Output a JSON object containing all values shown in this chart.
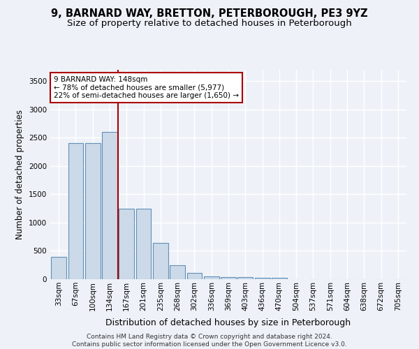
{
  "title": "9, BARNARD WAY, BRETTON, PETERBOROUGH, PE3 9YZ",
  "subtitle": "Size of property relative to detached houses in Peterborough",
  "xlabel": "Distribution of detached houses by size in Peterborough",
  "ylabel": "Number of detached properties",
  "footer_line1": "Contains HM Land Registry data © Crown copyright and database right 2024.",
  "footer_line2": "Contains public sector information licensed under the Open Government Licence v3.0.",
  "categories": [
    "33sqm",
    "67sqm",
    "100sqm",
    "134sqm",
    "167sqm",
    "201sqm",
    "235sqm",
    "268sqm",
    "302sqm",
    "336sqm",
    "369sqm",
    "403sqm",
    "436sqm",
    "470sqm",
    "504sqm",
    "537sqm",
    "571sqm",
    "604sqm",
    "638sqm",
    "672sqm",
    "705sqm"
  ],
  "values": [
    390,
    2400,
    2400,
    2600,
    1250,
    1250,
    640,
    250,
    110,
    55,
    40,
    40,
    30,
    25,
    0,
    0,
    0,
    0,
    0,
    0,
    0
  ],
  "bar_color": "#ccd9e8",
  "bar_edge_color": "#6090b8",
  "vline_x": 3.5,
  "vline_color": "#aa0000",
  "annotation_text": "9 BARNARD WAY: 148sqm\n← 78% of detached houses are smaller (5,977)\n22% of semi-detached houses are larger (1,650) →",
  "annotation_box_color": "#ffffff",
  "annotation_box_edge_color": "#aa0000",
  "ylim": [
    0,
    3700
  ],
  "yticks": [
    0,
    500,
    1000,
    1500,
    2000,
    2500,
    3000,
    3500
  ],
  "background_color": "#eef2f8",
  "grid_color": "#ffffff",
  "title_fontsize": 10.5,
  "subtitle_fontsize": 9.5,
  "ylabel_fontsize": 8.5,
  "xlabel_fontsize": 9,
  "tick_fontsize": 7.5,
  "annot_fontsize": 7.5,
  "footer_fontsize": 6.5
}
